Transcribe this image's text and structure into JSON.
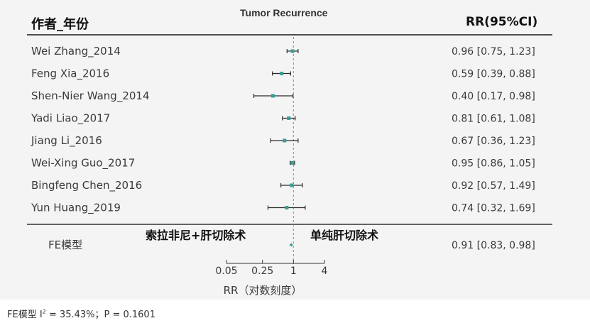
{
  "header": {
    "left_col": "作者_年份",
    "right_col": "RR(95%CI)",
    "title": "Tumor Recurrence"
  },
  "groups": {
    "left": "索拉非尼+肝切除术",
    "right": "单纯肝切除术"
  },
  "footer": {
    "model_label": "FE模型",
    "het_prefix": "FE模型 I",
    "het_sup": "2",
    "het_suffix": " = 35.43%；P = 0.1601"
  },
  "colors": {
    "marker": "#3a9e94",
    "line": "#2a2a2a",
    "text": "#3a3a3a"
  },
  "chart_data": {
    "type": "forest",
    "xlabel": "RR（对数刻度）",
    "xscale": "log",
    "xlim": [
      0.05,
      4
    ],
    "ticks": [
      0.05,
      0.25,
      1,
      4
    ],
    "tick_labels": [
      "0.05",
      "0.25",
      "1",
      "4"
    ],
    "reference_line": 1,
    "studies": [
      {
        "name": "Wei Zhang_2014",
        "rr": 0.96,
        "lo": 0.75,
        "hi": 1.23,
        "label": "0.96 [0.75, 1.23]"
      },
      {
        "name": "Feng Xia_2016",
        "rr": 0.59,
        "lo": 0.39,
        "hi": 0.88,
        "label": "0.59 [0.39, 0.88]"
      },
      {
        "name": "Shen-Nier Wang_2014",
        "rr": 0.4,
        "lo": 0.17,
        "hi": 0.98,
        "label": "0.40 [0.17, 0.98]"
      },
      {
        "name": "Yadi Liao_2017",
        "rr": 0.81,
        "lo": 0.61,
        "hi": 1.08,
        "label": "0.81 [0.61, 1.08]"
      },
      {
        "name": "Jiang Li_2016",
        "rr": 0.67,
        "lo": 0.36,
        "hi": 1.23,
        "label": "0.67 [0.36, 1.23]"
      },
      {
        "name": "Wei-Xing Guo_2017",
        "rr": 0.95,
        "lo": 0.86,
        "hi": 1.05,
        "label": "0.95 [0.86, 1.05]"
      },
      {
        "name": "Bingfeng Chen_2016",
        "rr": 0.92,
        "lo": 0.57,
        "hi": 1.49,
        "label": "0.92 [0.57, 1.49]"
      },
      {
        "name": "Yun Huang_2019",
        "rr": 0.74,
        "lo": 0.32,
        "hi": 1.69,
        "label": "0.74 [0.32, 1.69]"
      }
    ],
    "summary": {
      "rr": 0.91,
      "lo": 0.83,
      "hi": 0.98,
      "label": "0.91 [0.83, 0.98]"
    }
  }
}
